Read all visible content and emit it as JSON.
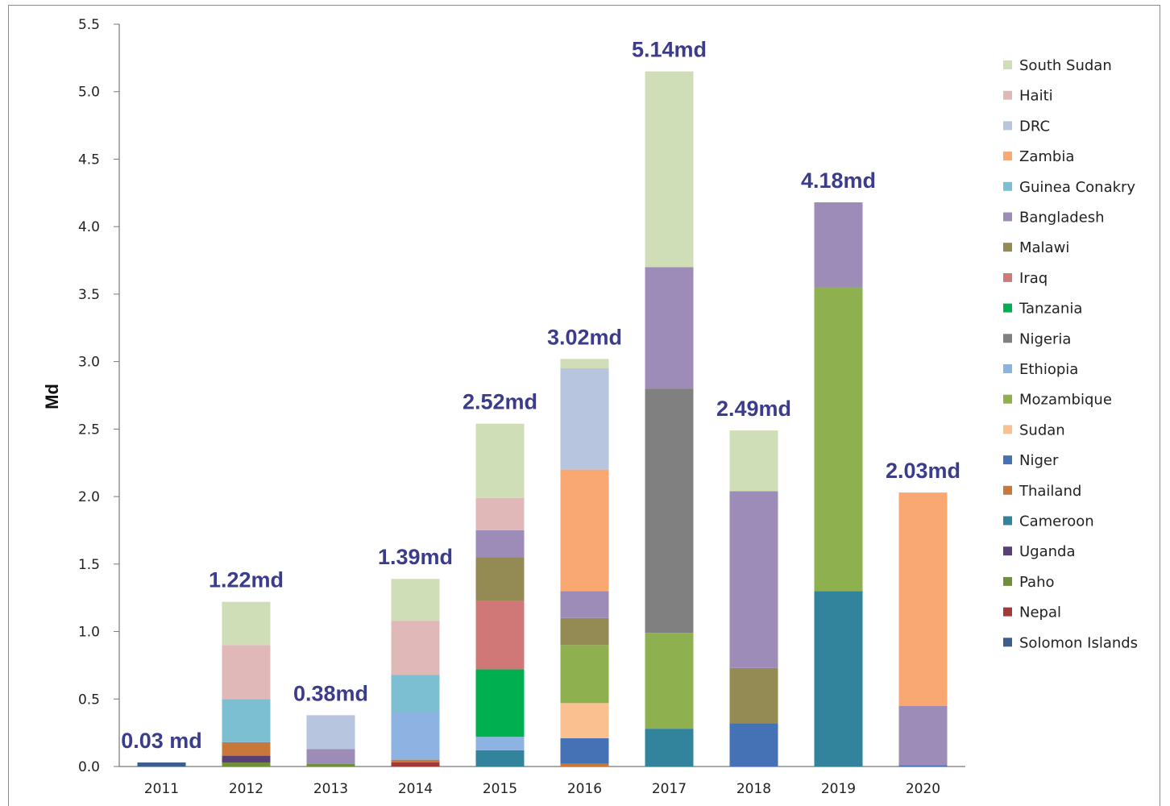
{
  "chart_data": {
    "type": "bar",
    "stacked": true,
    "ylabel": "Md",
    "ylim": [
      0,
      5.5
    ],
    "yticks": [
      "0.0",
      "0.5",
      "1.0",
      "1.5",
      "2.0",
      "2.5",
      "3.0",
      "3.5",
      "4.0",
      "4.5",
      "5.0",
      "5.5"
    ],
    "categories": [
      "2011",
      "2012",
      "2013",
      "2014",
      "2015",
      "2016",
      "2017",
      "2018",
      "2019",
      "2020"
    ],
    "totals": [
      "0.03 md",
      "1.22md",
      "0.38md",
      "1.39md",
      "2.52md",
      "3.02md",
      "5.14md",
      "2.49md",
      "4.18md",
      "2.03md"
    ],
    "legend_position": "right",
    "grid": false,
    "series": [
      {
        "name": "Solomon Islands",
        "color": "#3a5f8f",
        "values": [
          0.03,
          0,
          0,
          0,
          0,
          0,
          0,
          0,
          0,
          0
        ]
      },
      {
        "name": "Nepal",
        "color": "#a33a3a",
        "values": [
          0,
          0,
          0,
          0.03,
          0,
          0,
          0,
          0,
          0,
          0
        ]
      },
      {
        "name": "Paho",
        "color": "#6f8f3a",
        "values": [
          0,
          0.03,
          0.02,
          0,
          0,
          0,
          0,
          0,
          0,
          0
        ]
      },
      {
        "name": "Uganda",
        "color": "#5a3f77",
        "values": [
          0,
          0.05,
          0,
          0,
          0,
          0,
          0,
          0,
          0,
          0
        ]
      },
      {
        "name": "Cameroon",
        "color": "#31849b",
        "values": [
          0,
          0,
          0,
          0,
          0.12,
          0,
          0.28,
          0,
          1.3,
          0
        ]
      },
      {
        "name": "Thailand",
        "color": "#c8783a",
        "values": [
          0,
          0.1,
          0,
          0.02,
          0,
          0.02,
          0,
          0,
          0,
          0
        ]
      },
      {
        "name": "Niger",
        "color": "#4472b4",
        "values": [
          0,
          0,
          0,
          0,
          0,
          0.19,
          0,
          0.32,
          0,
          0.01
        ]
      },
      {
        "name": "Sudan",
        "color": "#fac090",
        "values": [
          0,
          0,
          0,
          0,
          0,
          0.26,
          0,
          0,
          0,
          0
        ]
      },
      {
        "name": "Mozambique",
        "color": "#8eb04e",
        "values": [
          0,
          0,
          0,
          0,
          0,
          0.43,
          0.71,
          0,
          2.25,
          0
        ]
      },
      {
        "name": "Ethiopia",
        "color": "#8db3e2",
        "values": [
          0,
          0,
          0,
          0.35,
          0.1,
          0,
          0,
          0,
          0,
          0
        ]
      },
      {
        "name": "Nigeria",
        "color": "#808080",
        "values": [
          0,
          0,
          0,
          0,
          0,
          0,
          1.81,
          0,
          0,
          0
        ]
      },
      {
        "name": "Tanzania",
        "color": "#00b050",
        "values": [
          0,
          0,
          0,
          0,
          0.5,
          0,
          0,
          0,
          0,
          0
        ]
      },
      {
        "name": "Iraq",
        "color": "#d07878",
        "values": [
          0,
          0,
          0,
          0,
          0.51,
          0,
          0,
          0,
          0,
          0
        ]
      },
      {
        "name": "Malawi",
        "color": "#948a54",
        "values": [
          0,
          0,
          0,
          0,
          0.32,
          0.2,
          0,
          0.41,
          0,
          0
        ]
      },
      {
        "name": "Bangladesh",
        "color": "#9d8cb8",
        "values": [
          0,
          0,
          0.11,
          0,
          0.2,
          0.2,
          0.9,
          1.31,
          0.63,
          0.44
        ]
      },
      {
        "name": "Guinea Conakry",
        "color": "#7cbfd2",
        "values": [
          0,
          0.32,
          0,
          0.28,
          0,
          0,
          0,
          0,
          0,
          0
        ]
      },
      {
        "name": "Zambia",
        "color": "#f9a872",
        "values": [
          0,
          0,
          0,
          0,
          0,
          0.9,
          0,
          0,
          0,
          1.58
        ]
      },
      {
        "name": "DRC",
        "color": "#b7c5df",
        "values": [
          0,
          0,
          0.25,
          0,
          0,
          0.75,
          0,
          0,
          0,
          0
        ]
      },
      {
        "name": "Haiti",
        "color": "#e0b8b8",
        "values": [
          0,
          0.4,
          0,
          0.4,
          0.24,
          0,
          0,
          0,
          0,
          0
        ]
      },
      {
        "name": "South Sudan",
        "color": "#d0deb8",
        "values": [
          0,
          0.32,
          0,
          0.31,
          0.55,
          0.07,
          1.45,
          0.45,
          0,
          0
        ]
      }
    ]
  }
}
